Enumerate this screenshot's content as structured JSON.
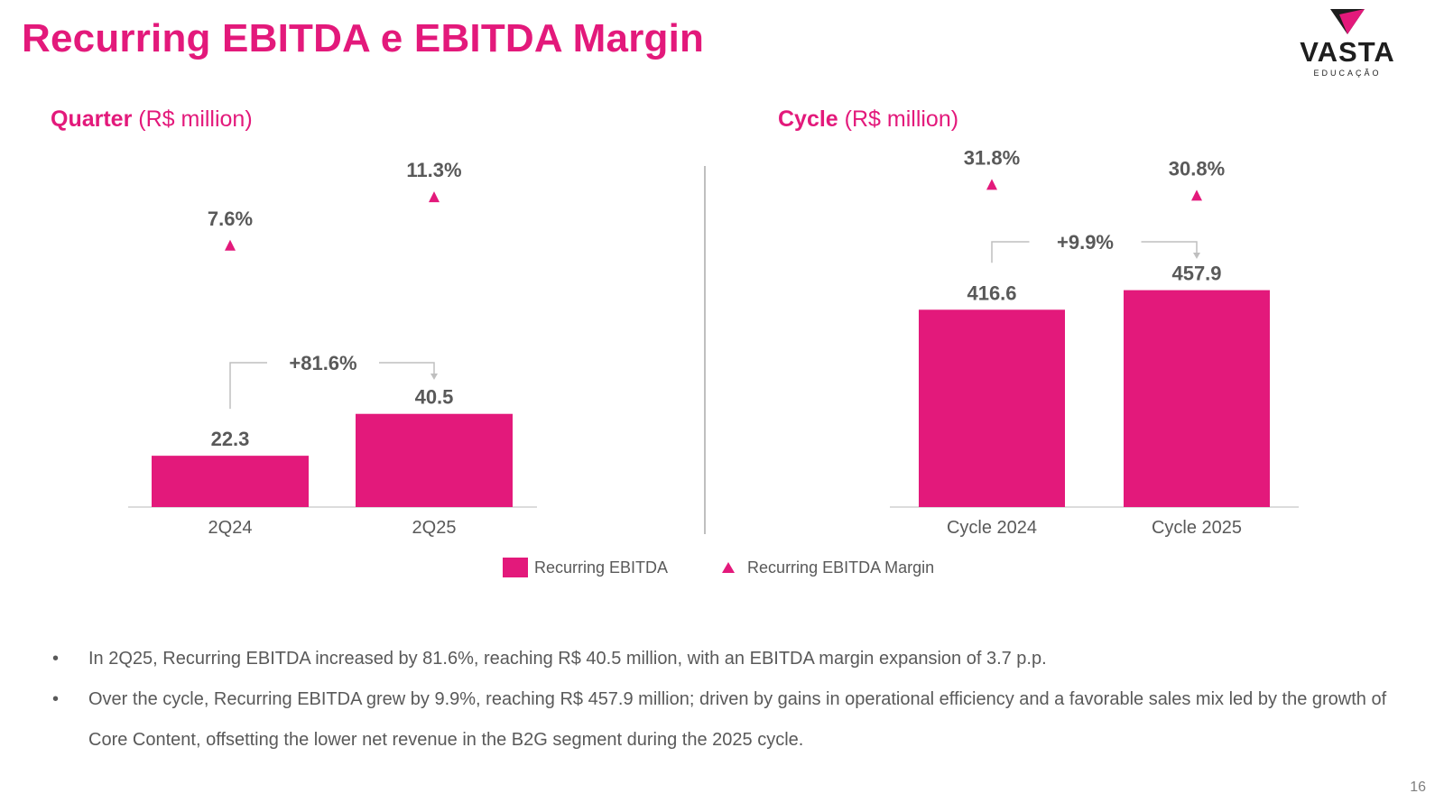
{
  "title": "Recurring EBITDA e EBITDA Margin",
  "logo": {
    "name": "VASTA",
    "sub": "EDUCAÇÃO"
  },
  "brand_color": "#E3197B",
  "panels": [
    {
      "bold": "Quarter",
      "rest": " (R$ million)"
    },
    {
      "bold": "Cycle",
      "rest": " (R$ million)"
    }
  ],
  "chart_data": [
    {
      "type": "bar",
      "title": "Quarter (R$ million)",
      "categories": [
        "2Q24",
        "2Q25"
      ],
      "series": [
        {
          "name": "Recurring EBITDA",
          "values": [
            22.3,
            40.5
          ],
          "labels": [
            "22.3",
            "40.5"
          ]
        },
        {
          "name": "Recurring  EBITDA Margin",
          "values": [
            7.6,
            11.3
          ],
          "labels": [
            "7.6%",
            "11.3%"
          ],
          "marker": "triangle"
        }
      ],
      "growth": "+81.6%"
    },
    {
      "type": "bar",
      "title": "Cycle (R$ million)",
      "categories": [
        "Cycle 2024",
        "Cycle 2025"
      ],
      "series": [
        {
          "name": "Recurring EBITDA",
          "values": [
            416.6,
            457.9
          ],
          "labels": [
            "416.6",
            "457.9"
          ]
        },
        {
          "name": "Recurring  EBITDA Margin",
          "values": [
            31.8,
            30.8
          ],
          "labels": [
            "31.8%",
            "30.8%"
          ],
          "marker": "triangle"
        }
      ],
      "growth": "+9.9%"
    }
  ],
  "legend": {
    "bar": "Recurring EBITDA",
    "marker": "Recurring  EBITDA Margin"
  },
  "bullets": [
    "In 2Q25, Recurring EBITDA increased by 81.6%, reaching R$ 40.5 million, with an EBITDA margin expansion of 3.7 p.p.",
    "Over the cycle, Recurring EBITDA grew by 9.9%, reaching R$ 457.9 million; driven by gains in operational efficiency and a favorable sales mix led by the growth of Core Content, offsetting the lower net revenue in the B2G segment during the 2025 cycle."
  ],
  "page_number": "16"
}
